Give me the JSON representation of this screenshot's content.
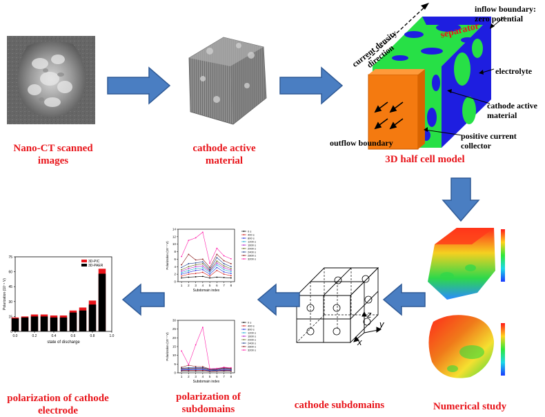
{
  "captions": {
    "nano_ct": "Nano-CT scanned images",
    "cathode_material": "cathode active material",
    "half_cell": "3D half cell model",
    "numerical": "Numerical study",
    "subdomains": "cathode subdomains",
    "pol_subdomains": "polarization of subdomains",
    "pol_cathode": "polarization of cathode electrode"
  },
  "model_labels": {
    "inflow": "inflow boundary: zero potential",
    "separator": "separator",
    "current_density": "current density direction",
    "electrolyte": "electrolyte",
    "cathode_active": "cathode active material",
    "positive_collector": "positive current collector",
    "outflow": "outflow boundary"
  },
  "axes_labels": {
    "x": "x",
    "y": "y",
    "z": "z"
  },
  "colors": {
    "arrow_fill": "#4a7ec2",
    "arrow_stroke": "#2f5a96",
    "caption": "#e8141a",
    "collector": "#f47a10",
    "separator": "#1e1ee0",
    "electrolyte": "#27e046"
  },
  "icons": [
    "right-arrow-icon",
    "down-arrow-icon",
    "left-arrow-icon"
  ],
  "chart_data": [
    {
      "type": "bar",
      "categories": [
        "0.0",
        "0.1",
        "0.2",
        "0.3",
        "0.4",
        "0.5",
        "0.6",
        "0.7",
        "0.8",
        "0.9"
      ],
      "series": [
        {
          "name": "3D-PIC",
          "values": [
            14,
            15,
            17,
            17,
            16,
            16,
            21,
            24,
            31,
            63
          ]
        },
        {
          "name": "3D-PAER",
          "values": [
            13,
            14,
            15,
            15,
            14,
            14,
            19,
            21,
            27,
            58
          ]
        }
      ],
      "xlabel": "state of discharge",
      "ylabel": "Polarization (10⁻⁴ V)",
      "xlim": [
        0.0,
        1.0
      ],
      "ylim": [
        0,
        75
      ],
      "yticks": [
        "0",
        "15",
        "30",
        "45",
        "60",
        "75"
      ],
      "xticks": [
        "0.0",
        "0.2",
        "0.4",
        "0.6",
        "0.8",
        "1.0"
      ],
      "legend_placement": "top-right"
    },
    {
      "type": "line",
      "x": [
        1,
        2,
        3,
        4,
        5,
        6,
        7,
        8
      ],
      "series": [
        {
          "name": "0 s",
          "values": [
            1.0,
            1.2,
            1.3,
            1.4,
            1.0,
            1.2,
            1.1,
            1.0
          ]
        },
        {
          "name": "400 s",
          "values": [
            1.5,
            2.0,
            2.2,
            2.5,
            1.5,
            3.0,
            2.0,
            1.6
          ]
        },
        {
          "name": "800 s",
          "values": [
            2.0,
            2.5,
            3.0,
            3.2,
            2.0,
            3.8,
            2.6,
            2.2
          ]
        },
        {
          "name": "1200 s",
          "values": [
            2.4,
            3.0,
            3.5,
            3.7,
            2.5,
            4.5,
            3.2,
            2.7
          ]
        },
        {
          "name": "1600 s",
          "values": [
            2.8,
            3.5,
            4.0,
            4.2,
            2.8,
            5.0,
            3.7,
            3.1
          ]
        },
        {
          "name": "2000 s",
          "values": [
            3.2,
            4.0,
            4.5,
            4.8,
            3.0,
            5.5,
            4.2,
            3.5
          ]
        },
        {
          "name": "2400 s",
          "values": [
            3.8,
            4.8,
            5.0,
            5.3,
            3.3,
            6.4,
            4.8,
            4.0
          ]
        },
        {
          "name": "2800 s",
          "values": [
            4.5,
            7.3,
            5.8,
            6.0,
            3.8,
            7.3,
            5.6,
            4.8
          ]
        },
        {
          "name": "3200 s",
          "values": [
            6.7,
            11.0,
            11.7,
            13.2,
            4.9,
            8.9,
            6.9,
            6.1
          ]
        }
      ],
      "xlabel": "Subdomain index",
      "ylabel": "Polarization (10⁻⁴ V)",
      "xlim": [
        0.5,
        8.5
      ],
      "ylim": [
        0,
        14
      ],
      "yticks": [
        "0",
        "2",
        "4",
        "6",
        "8",
        "10",
        "12",
        "14"
      ],
      "xticks": [
        "1",
        "2",
        "3",
        "4",
        "5",
        "6",
        "7",
        "8"
      ],
      "legend_placement": "right"
    },
    {
      "type": "line",
      "x": [
        1,
        2,
        3,
        4,
        5,
        6,
        7,
        8
      ],
      "series": [
        {
          "name": "0 s",
          "values": [
            1.0,
            1.0,
            1.0,
            1.1,
            0.8,
            0.9,
            1.0,
            0.9
          ]
        },
        {
          "name": "400 s",
          "values": [
            1.3,
            1.3,
            1.4,
            1.4,
            1.0,
            1.1,
            1.3,
            1.2
          ]
        },
        {
          "name": "800 s",
          "values": [
            1.6,
            1.7,
            1.8,
            1.8,
            1.2,
            1.3,
            1.6,
            1.5
          ]
        },
        {
          "name": "1200 s",
          "values": [
            1.9,
            2.0,
            2.1,
            2.1,
            1.4,
            1.5,
            1.9,
            1.7
          ]
        },
        {
          "name": "1600 s",
          "values": [
            2.1,
            2.3,
            2.4,
            2.4,
            1.6,
            1.7,
            2.1,
            1.9
          ]
        },
        {
          "name": "2000 s",
          "values": [
            2.4,
            2.6,
            2.7,
            2.7,
            1.8,
            1.9,
            2.4,
            2.1
          ]
        },
        {
          "name": "2400 s",
          "values": [
            2.7,
            2.9,
            3.0,
            3.0,
            2.0,
            2.1,
            2.6,
            2.3
          ]
        },
        {
          "name": "2800 s",
          "values": [
            3.2,
            4.3,
            3.6,
            3.5,
            2.2,
            2.4,
            2.9,
            2.6
          ]
        },
        {
          "name": "3200 s",
          "values": [
            12.5,
            4.7,
            16.0,
            26.0,
            2.3,
            2.5,
            3.2,
            2.9
          ]
        }
      ],
      "xlabel": "Subdomain index",
      "ylabel": "Polarization (10⁻⁴ V)",
      "xlim": [
        0.5,
        8.5
      ],
      "ylim": [
        0,
        30
      ],
      "yticks": [
        "0",
        "5",
        "10",
        "15",
        "20",
        "25",
        "30"
      ],
      "xticks": [
        "1",
        "2",
        "3",
        "4",
        "5",
        "6",
        "7",
        "8"
      ],
      "legend_placement": "right"
    }
  ]
}
